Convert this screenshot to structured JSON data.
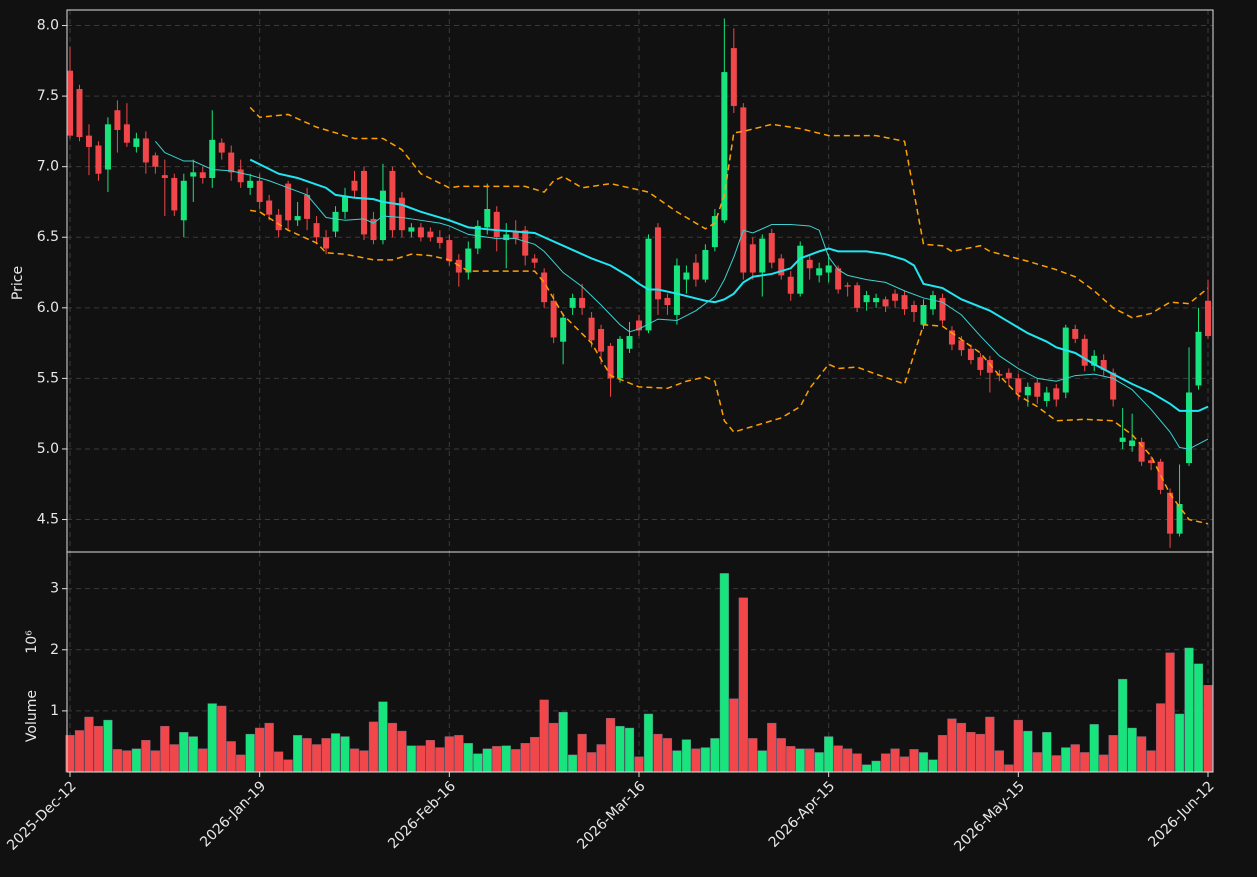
{
  "chart_data": {
    "type": "candlestick",
    "ylabel": "Price",
    "volume_ylabel": "Volume",
    "volume_scale_label": "10⁶",
    "ylim": [
      4.27,
      8.11
    ],
    "yticks": [
      4.5,
      {
        "value": 5,
        "label": "5.0"
      },
      5.5,
      {
        "value": 6,
        "label": "6.0"
      },
      6.5,
      {
        "value": 7,
        "label": "7.0"
      },
      7.5,
      {
        "value": 8,
        "label": "8.0"
      }
    ],
    "volume_ylim": [
      0,
      3.6
    ],
    "volume_yticks": [
      1,
      2,
      3
    ],
    "grid": true,
    "up_color": "#18e47e",
    "down_color": "#f2474a",
    "categories": [
      "2025-Dec-12",
      null,
      null,
      null,
      null,
      null,
      null,
      null,
      null,
      null,
      null,
      null,
      null,
      null,
      null,
      null,
      null,
      null,
      null,
      null,
      "2026-Jan-19",
      null,
      null,
      null,
      null,
      null,
      null,
      null,
      null,
      null,
      null,
      null,
      null,
      null,
      null,
      null,
      null,
      null,
      null,
      null,
      "2026-Feb-16",
      null,
      null,
      null,
      null,
      null,
      null,
      null,
      null,
      null,
      null,
      null,
      null,
      null,
      null,
      null,
      null,
      null,
      null,
      null,
      "2026-Mar-16",
      null,
      null,
      null,
      null,
      null,
      null,
      null,
      null,
      null,
      null,
      null,
      null,
      null,
      null,
      null,
      null,
      null,
      null,
      null,
      "2026-Apr-15",
      null,
      null,
      null,
      null,
      null,
      null,
      null,
      null,
      null,
      null,
      null,
      null,
      null,
      null,
      null,
      null,
      null,
      null,
      null,
      "2026-May-15",
      null,
      null,
      null,
      null,
      null,
      null,
      null,
      null,
      null,
      null,
      null,
      null,
      null,
      null,
      null,
      null,
      null,
      null,
      null,
      "2026-Jun-12"
    ],
    "open": [
      7.68,
      7.55,
      7.22,
      7.15,
      6.98,
      7.4,
      7.3,
      7.14,
      7.2,
      7.08,
      6.94,
      6.92,
      6.62,
      6.93,
      6.96,
      6.92,
      7.17,
      7.1,
      6.98,
      6.85,
      6.9,
      6.76,
      6.66,
      6.88,
      6.62,
      6.8,
      6.6,
      6.5,
      6.54,
      6.68,
      6.9,
      6.97,
      6.63,
      6.48,
      6.97,
      6.78,
      6.54,
      6.57,
      6.54,
      6.5,
      6.48,
      6.34,
      6.25,
      6.42,
      6.57,
      6.68,
      6.48,
      6.54,
      6.55,
      6.35,
      6.25,
      6.05,
      5.76,
      6.0,
      6.07,
      5.93,
      5.85,
      5.73,
      5.5,
      5.71,
      5.91,
      5.84,
      6.57,
      6.07,
      5.95,
      6.2,
      6.32,
      6.2,
      6.43,
      6.62,
      7.84,
      7.42,
      6.45,
      6.25,
      6.53,
      6.35,
      6.22,
      6.1,
      6.34,
      6.23,
      6.25,
      6.28,
      6.16,
      6.16,
      6.04,
      6.04,
      6.06,
      6.1,
      6.09,
      6.02,
      5.88,
      5.99,
      6.07,
      5.84,
      5.77,
      5.71,
      5.65,
      5.63,
      5.53,
      5.54,
      5.5,
      5.38,
      5.47,
      5.34,
      5.43,
      5.4,
      5.85,
      5.78,
      5.59,
      5.63,
      5.54,
      5.05,
      5.02,
      5.05,
      4.92,
      4.91,
      4.69,
      4.4,
      4.9,
      5.45,
      6.05
    ],
    "high": [
      7.85,
      7.58,
      7.3,
      7.18,
      7.35,
      7.47,
      7.45,
      7.24,
      7.25,
      7.1,
      7.05,
      6.95,
      6.95,
      7.05,
      7.0,
      7.4,
      7.2,
      7.15,
      7.05,
      6.95,
      6.95,
      6.8,
      6.7,
      6.9,
      6.75,
      6.85,
      6.65,
      6.55,
      6.72,
      6.85,
      6.97,
      7.0,
      6.68,
      7.02,
      7.0,
      6.82,
      6.6,
      6.6,
      6.57,
      6.55,
      6.52,
      6.38,
      6.47,
      6.62,
      6.88,
      6.72,
      6.6,
      6.62,
      6.58,
      6.38,
      6.28,
      6.1,
      5.96,
      6.1,
      6.17,
      5.97,
      5.88,
      5.75,
      5.8,
      5.9,
      5.95,
      6.52,
      6.6,
      6.1,
      6.35,
      6.3,
      6.38,
      6.45,
      6.7,
      8.05,
      7.98,
      7.45,
      6.5,
      6.52,
      6.56,
      6.38,
      6.26,
      6.47,
      6.37,
      6.32,
      6.38,
      6.3,
      6.18,
      6.18,
      6.12,
      6.1,
      6.08,
      6.13,
      6.12,
      6.05,
      6.06,
      6.12,
      6.1,
      5.87,
      5.8,
      5.74,
      5.68,
      5.66,
      5.56,
      5.57,
      5.53,
      5.47,
      5.5,
      5.44,
      5.46,
      5.88,
      5.88,
      5.81,
      5.7,
      5.67,
      5.57,
      5.29,
      5.25,
      5.08,
      4.95,
      4.93,
      4.72,
      4.89,
      5.72,
      6.0,
      6.2
    ],
    "low": [
      7.2,
      7.18,
      6.94,
      6.9,
      6.82,
      7.1,
      7.14,
      7.1,
      6.95,
      6.95,
      6.65,
      6.65,
      6.5,
      6.75,
      6.88,
      6.85,
      7.05,
      6.9,
      6.85,
      6.8,
      6.7,
      6.62,
      6.5,
      6.55,
      6.58,
      6.55,
      6.45,
      6.38,
      6.5,
      6.63,
      6.78,
      6.48,
      6.45,
      6.45,
      6.5,
      6.5,
      6.5,
      6.47,
      6.47,
      6.42,
      6.3,
      6.15,
      6.2,
      6.38,
      6.52,
      6.4,
      6.28,
      6.45,
      6.3,
      6.28,
      6.0,
      5.75,
      5.6,
      5.95,
      5.95,
      5.72,
      5.6,
      5.37,
      5.47,
      5.68,
      5.8,
      5.82,
      5.95,
      5.95,
      5.88,
      6.1,
      6.15,
      6.18,
      6.4,
      6.6,
      7.38,
      6.2,
      6.2,
      6.08,
      6.28,
      6.2,
      6.05,
      6.08,
      6.2,
      6.18,
      6.18,
      6.1,
      6.08,
      5.97,
      5.98,
      6.0,
      5.97,
      6.0,
      5.95,
      5.9,
      5.85,
      5.95,
      5.88,
      5.7,
      5.66,
      5.6,
      5.52,
      5.4,
      5.48,
      5.45,
      5.35,
      5.3,
      5.32,
      5.3,
      5.3,
      5.36,
      5.75,
      5.55,
      5.55,
      5.52,
      5.3,
      5.0,
      4.98,
      4.88,
      4.85,
      4.68,
      4.3,
      4.38,
      4.88,
      5.42,
      5.78
    ],
    "close": [
      7.22,
      7.21,
      7.14,
      6.95,
      7.3,
      7.26,
      7.17,
      7.2,
      7.03,
      7.0,
      6.92,
      6.69,
      6.9,
      6.96,
      6.92,
      7.19,
      7.1,
      6.96,
      6.89,
      6.9,
      6.75,
      6.66,
      6.55,
      6.62,
      6.65,
      6.63,
      6.5,
      6.42,
      6.68,
      6.79,
      6.83,
      6.52,
      6.48,
      6.83,
      6.55,
      6.55,
      6.57,
      6.5,
      6.5,
      6.46,
      6.33,
      6.25,
      6.42,
      6.58,
      6.7,
      6.5,
      6.52,
      6.49,
      6.37,
      6.32,
      6.04,
      5.79,
      5.93,
      6.07,
      6.0,
      5.77,
      5.69,
      5.5,
      5.78,
      5.8,
      5.84,
      6.49,
      6.06,
      6.02,
      6.3,
      6.25,
      6.2,
      6.41,
      6.65,
      7.67,
      7.43,
      6.25,
      6.25,
      6.49,
      6.32,
      6.23,
      6.1,
      6.44,
      6.28,
      6.28,
      6.3,
      6.13,
      6.15,
      6.0,
      6.09,
      6.07,
      6.01,
      6.05,
      5.99,
      5.97,
      6.02,
      6.09,
      5.91,
      5.74,
      5.7,
      5.63,
      5.56,
      5.54,
      5.52,
      5.5,
      5.4,
      5.44,
      5.37,
      5.4,
      5.35,
      5.86,
      5.78,
      5.59,
      5.66,
      5.56,
      5.35,
      5.08,
      5.06,
      4.91,
      4.9,
      4.71,
      4.4,
      4.61,
      5.4,
      5.83,
      5.8
    ],
    "volume": [
      0.6,
      0.68,
      0.9,
      0.75,
      0.85,
      0.37,
      0.35,
      0.38,
      0.52,
      0.35,
      0.75,
      0.45,
      0.65,
      0.58,
      0.38,
      1.12,
      1.08,
      0.5,
      0.28,
      0.62,
      0.72,
      0.8,
      0.33,
      0.2,
      0.6,
      0.55,
      0.45,
      0.55,
      0.63,
      0.58,
      0.38,
      0.35,
      0.82,
      1.15,
      0.8,
      0.67,
      0.43,
      0.43,
      0.52,
      0.4,
      0.58,
      0.6,
      0.47,
      0.3,
      0.38,
      0.42,
      0.43,
      0.37,
      0.47,
      0.57,
      1.18,
      0.8,
      0.98,
      0.28,
      0.62,
      0.32,
      0.45,
      0.88,
      0.75,
      0.72,
      0.25,
      0.95,
      0.62,
      0.55,
      0.35,
      0.53,
      0.38,
      0.4,
      0.55,
      3.25,
      1.2,
      2.85,
      0.55,
      0.35,
      0.8,
      0.55,
      0.42,
      0.38,
      0.38,
      0.32,
      0.58,
      0.43,
      0.38,
      0.3,
      0.12,
      0.18,
      0.3,
      0.38,
      0.25,
      0.37,
      0.32,
      0.2,
      0.6,
      0.87,
      0.8,
      0.65,
      0.62,
      0.9,
      0.35,
      0.12,
      0.85,
      0.67,
      0.32,
      0.65,
      0.27,
      0.4,
      0.45,
      0.32,
      0.78,
      0.28,
      0.6,
      1.52,
      0.72,
      0.58,
      0.35,
      1.12,
      1.95,
      0.95,
      2.03,
      1.77,
      1.42
    ],
    "overlays": [
      {
        "color": "#ffa000",
        "dashed": true,
        "x": [
          19,
          20,
          23,
          26,
          30,
          33,
          35,
          37,
          40,
          41,
          48,
          50,
          51,
          52,
          54,
          57,
          59,
          61,
          64,
          67,
          68,
          69,
          70,
          71,
          74,
          77,
          80,
          85,
          88,
          90,
          92,
          93,
          96,
          97,
          101,
          104,
          106,
          108,
          110,
          112,
          114,
          116,
          118,
          120
        ],
        "values": [
          7.42,
          7.35,
          7.37,
          7.28,
          7.2,
          7.2,
          7.12,
          6.95,
          6.85,
          6.86,
          6.86,
          6.82,
          6.9,
          6.93,
          6.85,
          6.88,
          6.85,
          6.82,
          6.68,
          6.56,
          6.6,
          6.8,
          7.24,
          7.25,
          7.3,
          7.27,
          7.22,
          7.22,
          7.18,
          6.45,
          6.44,
          6.4,
          6.44,
          6.4,
          6.33,
          6.27,
          6.22,
          6.12,
          6.0,
          5.93,
          5.96,
          6.04,
          6.03,
          6.14
        ]
      },
      {
        "color": "#ffa000",
        "dashed": true,
        "x": [
          19,
          20,
          23,
          26,
          27,
          29,
          32,
          34,
          36,
          38,
          40,
          42,
          47,
          49,
          50,
          52,
          55,
          57,
          60,
          63,
          65,
          67,
          68,
          69,
          70,
          73,
          75,
          77,
          78,
          80,
          81,
          83,
          85,
          88,
          90,
          92,
          96,
          98,
          100,
          102,
          104,
          107,
          110,
          112,
          114,
          116,
          118,
          120
        ],
        "values": [
          6.69,
          6.68,
          6.55,
          6.46,
          6.39,
          6.38,
          6.34,
          6.34,
          6.38,
          6.37,
          6.34,
          6.26,
          6.26,
          6.26,
          6.18,
          5.95,
          5.75,
          5.52,
          5.44,
          5.43,
          5.48,
          5.51,
          5.48,
          5.2,
          5.12,
          5.18,
          5.22,
          5.3,
          5.43,
          5.6,
          5.57,
          5.58,
          5.53,
          5.46,
          5.88,
          5.87,
          5.68,
          5.52,
          5.38,
          5.3,
          5.2,
          5.21,
          5.2,
          5.1,
          4.95,
          4.68,
          4.5,
          4.47
        ]
      },
      {
        "color": "#22e5f2",
        "width": 2,
        "x": [
          19,
          22,
          24,
          27,
          28,
          30,
          32,
          33,
          35,
          37,
          40,
          42,
          45,
          49,
          50,
          52,
          55,
          57,
          59,
          60,
          61,
          62,
          64,
          67,
          68,
          69,
          70,
          71,
          72,
          74,
          76,
          77,
          79,
          80,
          81,
          84,
          86,
          88,
          89,
          90,
          92,
          94,
          97,
          99,
          101,
          103,
          104,
          106,
          108,
          110,
          112,
          114,
          116,
          117,
          119,
          120
        ],
        "values": [
          7.05,
          6.95,
          6.92,
          6.85,
          6.8,
          6.78,
          6.77,
          6.75,
          6.73,
          6.68,
          6.62,
          6.57,
          6.55,
          6.53,
          6.5,
          6.44,
          6.35,
          6.3,
          6.22,
          6.17,
          6.13,
          6.13,
          6.1,
          6.05,
          6.04,
          6.06,
          6.1,
          6.18,
          6.22,
          6.24,
          6.28,
          6.35,
          6.4,
          6.42,
          6.4,
          6.4,
          6.38,
          6.34,
          6.3,
          6.17,
          6.14,
          6.06,
          5.98,
          5.9,
          5.82,
          5.76,
          5.72,
          5.68,
          5.6,
          5.53,
          5.46,
          5.4,
          5.32,
          5.27,
          5.27,
          5.3
        ]
      },
      {
        "color": "#3cd2d2",
        "width": 1,
        "x": [
          9,
          10,
          12,
          13,
          15,
          17,
          19,
          21,
          23,
          25,
          26,
          27,
          29,
          31,
          32,
          33,
          35,
          37,
          39,
          40,
          42,
          45,
          47,
          49,
          50,
          52,
          54,
          56,
          58,
          59,
          60,
          62,
          64,
          66,
          68,
          69,
          70,
          71,
          72,
          74,
          76,
          78,
          79,
          80,
          81,
          82,
          84,
          86,
          88,
          90,
          92,
          94,
          96,
          98,
          100,
          102,
          104,
          106,
          108,
          110,
          112,
          114,
          116,
          117,
          118,
          120
        ],
        "values": [
          7.18,
          7.1,
          7.04,
          7.04,
          6.98,
          6.97,
          6.94,
          6.9,
          6.85,
          6.8,
          6.72,
          6.64,
          6.62,
          6.63,
          6.6,
          6.65,
          6.64,
          6.62,
          6.6,
          6.58,
          6.52,
          6.49,
          6.49,
          6.45,
          6.4,
          6.25,
          6.15,
          6.02,
          5.88,
          5.83,
          5.85,
          5.92,
          5.91,
          5.98,
          6.08,
          6.2,
          6.36,
          6.55,
          6.53,
          6.59,
          6.59,
          6.58,
          6.55,
          6.36,
          6.27,
          6.23,
          6.2,
          6.18,
          6.12,
          6.07,
          6.04,
          5.95,
          5.8,
          5.66,
          5.57,
          5.5,
          5.48,
          5.52,
          5.53,
          5.5,
          5.42,
          5.28,
          5.12,
          5.01,
          5.0,
          5.07
        ]
      }
    ]
  }
}
